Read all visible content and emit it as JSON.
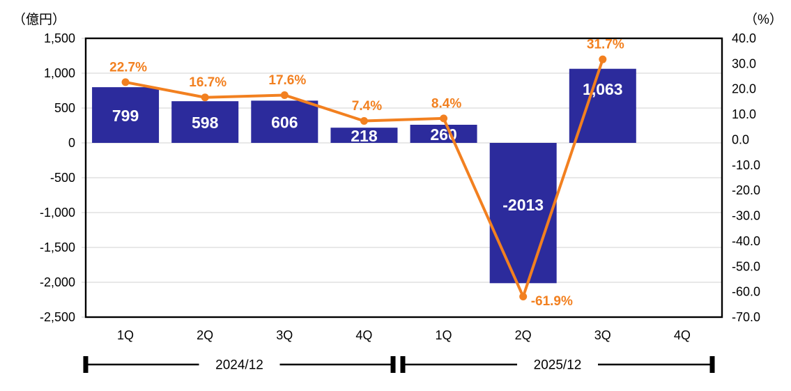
{
  "chart_data": {
    "type": "combo_bar_line",
    "categories": [
      "1Q",
      "2Q",
      "3Q",
      "4Q",
      "1Q",
      "2Q",
      "3Q",
      "4Q"
    ],
    "groups": [
      {
        "label": "2024/12",
        "from": 0,
        "to": 3
      },
      {
        "label": "2025/12",
        "from": 4,
        "to": 7
      }
    ],
    "bar_series": {
      "name": "amount",
      "values": [
        799,
        598,
        606,
        218,
        260,
        -2013,
        1063,
        null
      ],
      "labels": [
        "799",
        "598",
        "606",
        "218",
        "260",
        "-2013",
        "1,063",
        null
      ],
      "color": "#2c2b9c",
      "label_color": "#ffffff"
    },
    "line_series": {
      "name": "percent",
      "values": [
        22.7,
        16.7,
        17.6,
        7.4,
        8.4,
        -61.9,
        31.7,
        null
      ],
      "labels": [
        "22.7%",
        "16.7%",
        "17.6%",
        "7.4%",
        "8.4%",
        "-61.9%",
        "31.7%",
        null
      ],
      "color": "#f28020"
    },
    "left_axis": {
      "unit_label": "（億円）",
      "min": -2500,
      "max": 1500,
      "step": 500,
      "tick_labels": [
        "1,500",
        "1,000",
        "500",
        "0",
        "-500",
        "-1,000",
        "-1,500",
        "-2,000",
        "-2,500"
      ]
    },
    "right_axis": {
      "unit_label": "（%）",
      "min": -70,
      "max": 40,
      "step": 10,
      "tick_labels": [
        "40.0",
        "30.0",
        "20.0",
        "10.0",
        "0.0",
        "-10.0",
        "-20.0",
        "-30.0",
        "-40.0",
        "-50.0",
        "-60.0",
        "-70.0"
      ]
    },
    "grid": "horizontal gridlines on left-axis steps",
    "legend": "none",
    "layout_hints": {
      "bar_label_y_overrides": {
        "5": 294,
        "6": 128
      },
      "pct_label_side": {
        "5": "right"
      },
      "gridline_color": "#d9d9d9",
      "border_color": "#000000"
    }
  }
}
